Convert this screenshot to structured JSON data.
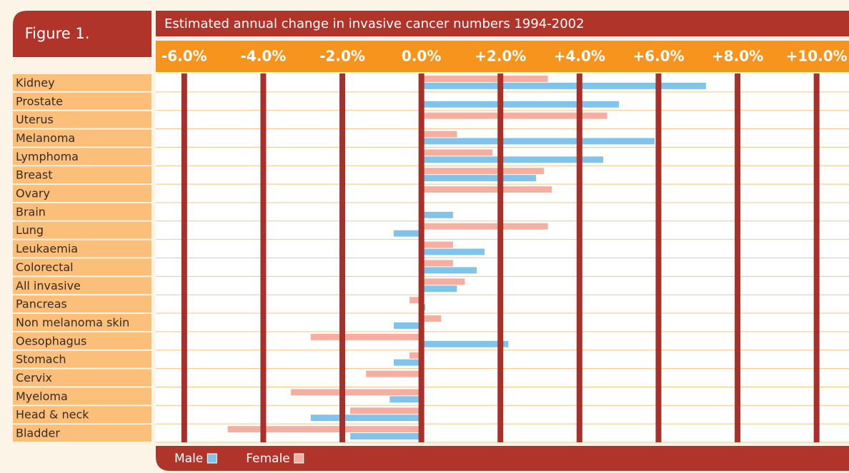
{
  "chart_data": {
    "type": "hbar",
    "figure_label": "Figure 1.",
    "title": "Estimated annual change in invasive cancer numbers 1994-2002",
    "categories": [
      "Kidney",
      "Prostate",
      "Uterus",
      "Melanoma",
      "Lymphoma",
      "Breast",
      "Ovary",
      "Brain",
      "Lung",
      "Leukaemia",
      "Colorectal",
      "All invasive",
      "Pancreas",
      "Non melanoma skin",
      "Oesophagus",
      "Stomach",
      "Cervix",
      "Myeloma",
      "Head & neck",
      "Bladder"
    ],
    "series": [
      {
        "name": "Female",
        "color": "#f6aea0",
        "values": [
          3.2,
          null,
          4.7,
          0.9,
          1.8,
          3.1,
          3.3,
          null,
          3.2,
          0.8,
          0.8,
          1.1,
          -0.3,
          0.5,
          -2.8,
          -0.3,
          -1.4,
          -3.3,
          -1.8,
          -4.9
        ]
      },
      {
        "name": "Male",
        "color": "#7fc4ea",
        "values": [
          7.2,
          5.0,
          null,
          5.9,
          4.6,
          2.9,
          null,
          0.8,
          -0.7,
          1.6,
          1.4,
          0.9,
          0.1,
          -0.7,
          2.2,
          -0.7,
          null,
          -0.8,
          -2.8,
          -1.8
        ]
      }
    ],
    "xlim": [
      -6.72,
      10.82
    ],
    "xticks": [
      {
        "value": -6,
        "label": "-6.0%"
      },
      {
        "value": -4,
        "label": "-4.0%"
      },
      {
        "value": -2,
        "label": "-2.0%"
      },
      {
        "value": 0,
        "label": "0.0%"
      },
      {
        "value": 2,
        "label": "+2.0%"
      },
      {
        "value": 4,
        "label": "+4.0%"
      },
      {
        "value": 6,
        "label": "+6.0%"
      },
      {
        "value": 8,
        "label": "+8.0%"
      },
      {
        "value": 10,
        "label": "+10.0%"
      }
    ],
    "grid": true,
    "legend": "bottom"
  }
}
